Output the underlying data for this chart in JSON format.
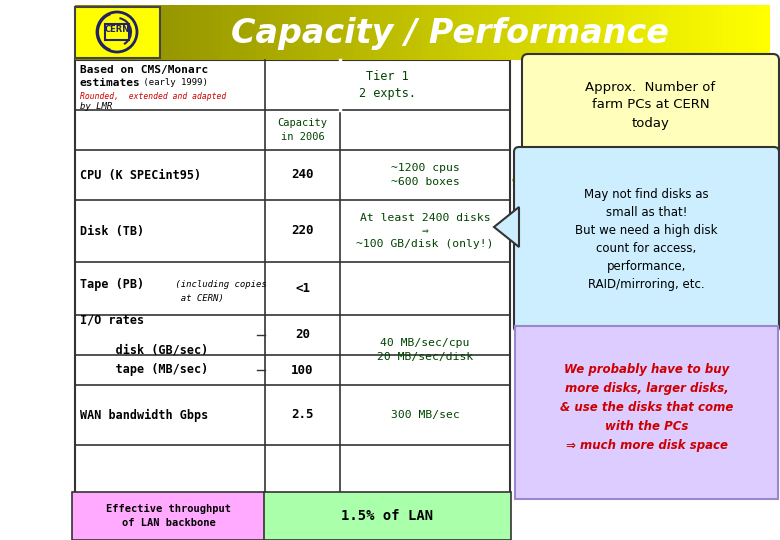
{
  "title": "Capacity / Performance",
  "header_bg": "#DDDD00",
  "header_text_color": "#FFFFFF",
  "subtitle1": "Based on CMS/Monarc",
  "subtitle2": "estimates",
  "subtitle2_small": " (early 1999)",
  "subtitle3": "Rounded,  extended and adapted",
  "subtitle4": "by LMR",
  "col_header1": "Tier 1\n2 expts.",
  "col_header2": "Capacity\nin 2006",
  "balloon1_text": "Approx.  Number of\nfarm PCs at CERN\ntoday",
  "balloon1_bg": "#FFFFBB",
  "balloon2_text": "May not find disks as\nsmall as that!\nBut we need a high disk\ncount for access,\nperformance,\nRAID/mirroring, etc.",
  "balloon2_bg": "#CCEEFF",
  "balloon3_text": "We probably have to buy\nmore disks, larger disks,\n& use the disks that come\nwith the PCs\n⇒ much more disk space",
  "balloon3_bg": "#DDCCFF",
  "balloon3_text_color": "#CC0000",
  "bottom_left_text": "Effective throughput\nof LAN backbone",
  "bottom_left_bg": "#FFAAFF",
  "bottom_mid_text": "1.5% of LAN",
  "bottom_mid_bg": "#AAFFAA"
}
